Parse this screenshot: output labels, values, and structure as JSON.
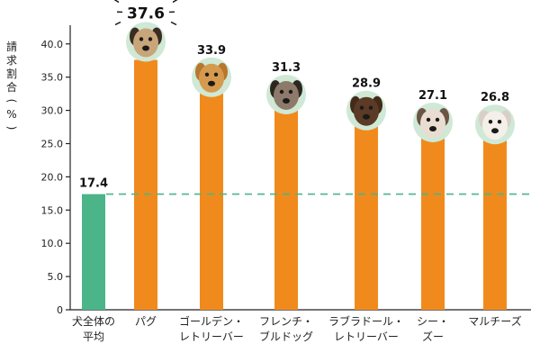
{
  "chart_data": {
    "type": "bar",
    "ylabel": "請求割合(%)",
    "ylim": [
      0,
      42
    ],
    "yticks": [
      0,
      5.0,
      10.0,
      15.0,
      20.0,
      25.0,
      30.0,
      35.0,
      40.0
    ],
    "ytick_labels": [
      "0",
      "5.0",
      "10.0",
      "15.0",
      "20.0",
      "25.0",
      "30.0",
      "35.0",
      "40.0"
    ],
    "categories": [
      {
        "lines": [
          "犬全体の",
          "平均"
        ]
      },
      {
        "lines": [
          "パグ"
        ]
      },
      {
        "lines": [
          "ゴールデン・",
          "レトリーバー"
        ]
      },
      {
        "lines": [
          "フレンチ・",
          "ブルドッグ"
        ]
      },
      {
        "lines": [
          "ラブラドール・",
          "レトリーバー"
        ]
      },
      {
        "lines": [
          "シー・",
          "ズー"
        ]
      },
      {
        "lines": [
          "マルチーズ"
        ]
      }
    ],
    "values": [
      17.4,
      37.6,
      33.9,
      31.3,
      28.9,
      27.1,
      26.8
    ],
    "value_labels": [
      "17.4",
      "37.6",
      "33.9",
      "31.3",
      "28.9",
      "27.1",
      "26.8"
    ],
    "reference_line": {
      "value": 17.4,
      "style": "dashed"
    },
    "grid": false,
    "colors": {
      "average_bar": "#4bb589",
      "breed_bar": "#f18a1c",
      "reference_line": "#4bb589",
      "icon_circle": "#cfe9d6",
      "axis": "#222222"
    },
    "icons": [
      "pug-icon",
      "golden-retriever-icon",
      "french-bulldog-icon",
      "labrador-retriever-icon",
      "shih-tzu-icon",
      "maltese-icon"
    ]
  }
}
